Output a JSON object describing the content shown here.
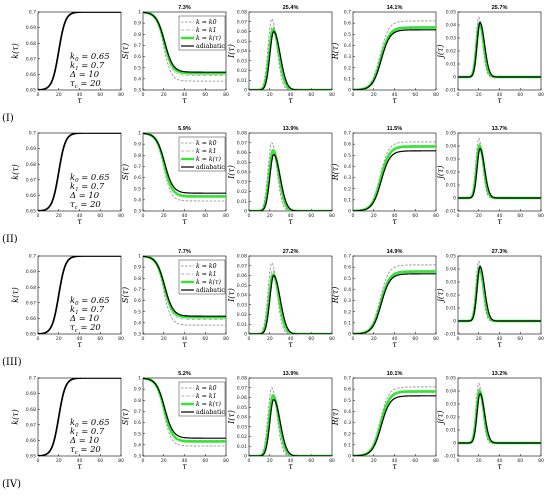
{
  "figure": {
    "row_labels": [
      "(I)",
      "(II)",
      "(III)",
      "(IV)"
    ],
    "params": [
      "k0 = 0.65",
      "k1 = 0.7",
      "Δ = 10",
      "τc = 20"
    ],
    "legend": [
      "k = k0",
      "k = k1",
      "k = k(τ)",
      "adiabatic"
    ],
    "colors": {
      "k0": "#888888",
      "k1": "#9a9a9a",
      "ktau": "#33e633",
      "adiabatic": "#000000"
    }
  },
  "chart_data": [
    {
      "row": "(I)",
      "panel": "k",
      "type": "line",
      "title": "",
      "xlabel": "τ",
      "ylabel": "k(τ)",
      "xlim": [
        0,
        80
      ],
      "ylim": [
        0.65,
        0.7
      ],
      "xticks": [
        "0",
        "20",
        "40",
        "60",
        "80"
      ],
      "yticks": [
        "0.65",
        "0.66",
        "0.67",
        "0.68",
        "0.69",
        "0.7"
      ],
      "series": [
        {
          "name": "",
          "values_x": [
            0,
            10,
            16,
            20,
            24,
            30,
            40,
            80
          ],
          "values_y": [
            0.65,
            0.651,
            0.658,
            0.675,
            0.692,
            0.699,
            0.7,
            0.7
          ]
        }
      ]
    },
    {
      "row": "(I)",
      "panel": "S",
      "type": "line",
      "title": "7.3%",
      "xlabel": "τ",
      "ylabel": "S(τ)",
      "xlim": [
        0,
        80
      ],
      "ylim": [
        0.3,
        1
      ],
      "xticks": [
        "0",
        "20",
        "40",
        "60",
        "80"
      ],
      "yticks": [
        "0.3",
        "0.4",
        "0.5",
        "0.6",
        "0.7",
        "0.8",
        "0.9",
        "1"
      ],
      "series": [
        {
          "name": "k = k0",
          "final": 0.38
        },
        {
          "name": "k = k1",
          "final": 0.43
        },
        {
          "name": "k = k(τ)",
          "final": 0.45
        },
        {
          "name": "adiabatic",
          "final": 0.46
        }
      ]
    },
    {
      "row": "(I)",
      "panel": "I",
      "type": "line",
      "title": "25.4%",
      "xlabel": "τ",
      "ylabel": "I(τ)",
      "xlim": [
        0,
        80
      ],
      "ylim": [
        0,
        0.08
      ],
      "xticks": [
        "0",
        "20",
        "40",
        "60",
        "80"
      ],
      "yticks": [
        "0",
        "0.01",
        "0.02",
        "0.03",
        "0.04",
        "0.05",
        "0.06",
        "0.07",
        "0.08"
      ],
      "series": [
        {
          "name": "k = k0",
          "peak": 0.073
        },
        {
          "name": "k = k1",
          "peak": 0.066
        },
        {
          "name": "k = k(τ)",
          "peak": 0.062
        },
        {
          "name": "adiabatic",
          "peak": 0.06
        }
      ]
    },
    {
      "row": "(I)",
      "panel": "R",
      "type": "line",
      "title": "14.1%",
      "xlabel": "τ",
      "ylabel": "R(τ)",
      "xlim": [
        0,
        80
      ],
      "ylim": [
        0,
        0.7
      ],
      "xticks": [
        "0",
        "20",
        "40",
        "60",
        "80"
      ],
      "yticks": [
        "0",
        "0.1",
        "0.2",
        "0.3",
        "0.4",
        "0.5",
        "0.6",
        "0.7"
      ],
      "series": [
        {
          "name": "k = k0",
          "final": 0.62
        },
        {
          "name": "k = k1",
          "final": 0.57
        },
        {
          "name": "k = k(τ)",
          "final": 0.56
        },
        {
          "name": "adiabatic",
          "final": 0.54
        }
      ]
    },
    {
      "row": "(I)",
      "panel": "j",
      "type": "line",
      "title": "25.7%",
      "xlabel": "τ",
      "ylabel": "j(τ)",
      "xlim": [
        0,
        80
      ],
      "ylim": [
        -0.01,
        0.05
      ],
      "xticks": [
        "0",
        "20",
        "40",
        "60",
        "80"
      ],
      "yticks": [
        "-0.01",
        "0",
        "0.01",
        "0.02",
        "0.03",
        "0.04",
        "0.05"
      ],
      "series": [
        {
          "name": "k = k0",
          "peak": 0.046
        },
        {
          "name": "k = k1",
          "peak": 0.043
        },
        {
          "name": "k = k(τ)",
          "peak": 0.041
        },
        {
          "name": "adiabatic",
          "peak": 0.042
        }
      ]
    },
    {
      "row": "(II)",
      "panel": "k",
      "type": "line",
      "title": "",
      "xlabel": "τ",
      "ylabel": "k(τ)",
      "xlim": [
        0,
        80
      ],
      "ylim": [
        0.65,
        0.7
      ],
      "xticks": [
        "0",
        "20",
        "40",
        "60",
        "80"
      ],
      "yticks": [
        "0.65",
        "0.66",
        "0.67",
        "0.68",
        "0.69",
        "0.7"
      ],
      "series": [
        {
          "name": "",
          "values_x": [
            0,
            10,
            16,
            20,
            24,
            30,
            40,
            80
          ],
          "values_y": [
            0.65,
            0.651,
            0.658,
            0.675,
            0.692,
            0.699,
            0.7,
            0.7
          ]
        }
      ]
    },
    {
      "row": "(II)",
      "panel": "S",
      "type": "line",
      "title": "5.9%",
      "xlabel": "τ",
      "ylabel": "S(τ)",
      "xlim": [
        0,
        80
      ],
      "ylim": [
        0.3,
        1
      ],
      "xticks": [
        "0",
        "20",
        "40",
        "60",
        "80"
      ],
      "yticks": [
        "0.3",
        "0.4",
        "0.5",
        "0.6",
        "0.7",
        "0.8",
        "0.9",
        "1"
      ],
      "series": [
        {
          "name": "k = k0",
          "final": 0.39
        },
        {
          "name": "k = k1",
          "final": 0.44
        },
        {
          "name": "k = k(τ)",
          "final": 0.43
        },
        {
          "name": "adiabatic",
          "final": 0.46
        }
      ]
    },
    {
      "row": "(II)",
      "panel": "I",
      "type": "line",
      "title": "13.9%",
      "xlabel": "τ",
      "ylabel": "I(τ)",
      "xlim": [
        0,
        80
      ],
      "ylim": [
        0,
        0.08
      ],
      "xticks": [
        "0",
        "20",
        "40",
        "60",
        "80"
      ],
      "yticks": [
        "0",
        "0.01",
        "0.02",
        "0.03",
        "0.04",
        "0.05",
        "0.06",
        "0.07",
        "0.08"
      ],
      "series": [
        {
          "name": "k = k0",
          "peak": 0.07
        },
        {
          "name": "k = k1",
          "peak": 0.063
        },
        {
          "name": "k = k(τ)",
          "peak": 0.062
        },
        {
          "name": "adiabatic",
          "peak": 0.058
        }
      ]
    },
    {
      "row": "(II)",
      "panel": "R",
      "type": "line",
      "title": "11.5%",
      "xlabel": "τ",
      "ylabel": "R(τ)",
      "xlim": [
        0,
        80
      ],
      "ylim": [
        0,
        0.7
      ],
      "xticks": [
        "0",
        "20",
        "40",
        "60",
        "80"
      ],
      "yticks": [
        "0",
        "0.1",
        "0.2",
        "0.3",
        "0.4",
        "0.5",
        "0.6",
        "0.7"
      ],
      "series": [
        {
          "name": "k = k0",
          "final": 0.62
        },
        {
          "name": "k = k1",
          "final": 0.57
        },
        {
          "name": "k = k(τ)",
          "final": 0.58
        },
        {
          "name": "adiabatic",
          "final": 0.54
        }
      ]
    },
    {
      "row": "(II)",
      "panel": "j",
      "type": "line",
      "title": "13.7%",
      "xlabel": "τ",
      "ylabel": "j(τ)",
      "xlim": [
        0,
        80
      ],
      "ylim": [
        -0.01,
        0.05
      ],
      "xticks": [
        "0",
        "20",
        "40",
        "60",
        "80"
      ],
      "yticks": [
        "-0.01",
        "0",
        "0.01",
        "0.02",
        "0.03",
        "0.04",
        "0.05"
      ],
      "series": [
        {
          "name": "k = k0",
          "peak": 0.046
        },
        {
          "name": "k = k1",
          "peak": 0.042
        },
        {
          "name": "k = k(τ)",
          "peak": 0.04
        },
        {
          "name": "adiabatic",
          "peak": 0.038
        }
      ]
    },
    {
      "row": "(III)",
      "panel": "k",
      "type": "line",
      "title": "",
      "xlabel": "τ",
      "ylabel": "k(τ)",
      "xlim": [
        0,
        80
      ],
      "ylim": [
        0.65,
        0.7
      ],
      "xticks": [
        "0",
        "20",
        "40",
        "60",
        "80"
      ],
      "yticks": [
        "0.65",
        "0.66",
        "0.67",
        "0.68",
        "0.69",
        "0.7"
      ],
      "series": [
        {
          "name": "",
          "values_x": [
            0,
            10,
            16,
            20,
            24,
            30,
            40,
            80
          ],
          "values_y": [
            0.65,
            0.651,
            0.658,
            0.675,
            0.692,
            0.699,
            0.7,
            0.7
          ]
        }
      ]
    },
    {
      "row": "(III)",
      "panel": "S",
      "type": "line",
      "title": "7.7%",
      "xlabel": "τ",
      "ylabel": "S(τ)",
      "xlim": [
        0,
        80
      ],
      "ylim": [
        0.3,
        1
      ],
      "xticks": [
        "0",
        "20",
        "40",
        "60",
        "80"
      ],
      "yticks": [
        "0.3",
        "0.4",
        "0.5",
        "0.6",
        "0.7",
        "0.8",
        "0.9",
        "1"
      ],
      "series": [
        {
          "name": "k = k0",
          "final": 0.38
        },
        {
          "name": "k = k1",
          "final": 0.43
        },
        {
          "name": "k = k(τ)",
          "final": 0.45
        },
        {
          "name": "adiabatic",
          "final": 0.46
        }
      ]
    },
    {
      "row": "(III)",
      "panel": "I",
      "type": "line",
      "title": "27.2%",
      "xlabel": "τ",
      "ylabel": "I(τ)",
      "xlim": [
        0,
        80
      ],
      "ylim": [
        0,
        0.08
      ],
      "xticks": [
        "0",
        "20",
        "40",
        "60",
        "80"
      ],
      "yticks": [
        "0",
        "0.01",
        "0.02",
        "0.03",
        "0.04",
        "0.05",
        "0.06",
        "0.07",
        "0.08"
      ],
      "series": [
        {
          "name": "k = k0",
          "peak": 0.073
        },
        {
          "name": "k = k1",
          "peak": 0.066
        },
        {
          "name": "k = k(τ)",
          "peak": 0.061
        },
        {
          "name": "adiabatic",
          "peak": 0.06
        }
      ]
    },
    {
      "row": "(III)",
      "panel": "R",
      "type": "line",
      "title": "14.9%",
      "xlabel": "τ",
      "ylabel": "R(τ)",
      "xlim": [
        0,
        80
      ],
      "ylim": [
        0,
        0.7
      ],
      "xticks": [
        "0",
        "20",
        "40",
        "60",
        "80"
      ],
      "yticks": [
        "0",
        "0.1",
        "0.2",
        "0.3",
        "0.4",
        "0.5",
        "0.6",
        "0.7"
      ],
      "series": [
        {
          "name": "k = k0",
          "final": 0.62
        },
        {
          "name": "k = k1",
          "final": 0.57
        },
        {
          "name": "k = k(τ)",
          "final": 0.56
        },
        {
          "name": "adiabatic",
          "final": 0.54
        }
      ]
    },
    {
      "row": "(III)",
      "panel": "j",
      "type": "line",
      "title": "27.3%",
      "xlabel": "τ",
      "ylabel": "j(τ)",
      "xlim": [
        0,
        80
      ],
      "ylim": [
        -0.01,
        0.05
      ],
      "xticks": [
        "0",
        "20",
        "40",
        "60",
        "80"
      ],
      "yticks": [
        "-0.01",
        "0",
        "0.01",
        "0.02",
        "0.03",
        "0.04",
        "0.05"
      ],
      "series": [
        {
          "name": "k = k0",
          "peak": 0.046
        },
        {
          "name": "k = k1",
          "peak": 0.043
        },
        {
          "name": "k = k(τ)",
          "peak": 0.04
        },
        {
          "name": "adiabatic",
          "peak": 0.042
        }
      ]
    },
    {
      "row": "(IV)",
      "panel": "k",
      "type": "line",
      "title": "",
      "xlabel": "τ",
      "ylabel": "k(τ)",
      "xlim": [
        0,
        80
      ],
      "ylim": [
        0.65,
        0.7
      ],
      "xticks": [
        "0",
        "20",
        "40",
        "60",
        "80"
      ],
      "yticks": [
        "0.65",
        "0.66",
        "0.67",
        "0.68",
        "0.69",
        "0.7"
      ],
      "series": [
        {
          "name": "",
          "values_x": [
            0,
            10,
            16,
            20,
            24,
            30,
            40,
            80
          ],
          "values_y": [
            0.65,
            0.651,
            0.658,
            0.675,
            0.692,
            0.699,
            0.7,
            0.7
          ]
        }
      ]
    },
    {
      "row": "(IV)",
      "panel": "S",
      "type": "line",
      "title": "5.2%",
      "xlabel": "τ",
      "ylabel": "S(τ)",
      "xlim": [
        0,
        80
      ],
      "ylim": [
        0.3,
        1
      ],
      "xticks": [
        "0",
        "20",
        "40",
        "60",
        "80"
      ],
      "yticks": [
        "0.3",
        "0.4",
        "0.5",
        "0.6",
        "0.7",
        "0.8",
        "0.9",
        "1"
      ],
      "series": [
        {
          "name": "k = k0",
          "final": 0.39
        },
        {
          "name": "k = k1",
          "final": 0.44
        },
        {
          "name": "k = k(τ)",
          "final": 0.43
        },
        {
          "name": "adiabatic",
          "final": 0.46
        }
      ]
    },
    {
      "row": "(IV)",
      "panel": "I",
      "type": "line",
      "title": "13.9%",
      "xlabel": "τ",
      "ylabel": "I(τ)",
      "xlim": [
        0,
        80
      ],
      "ylim": [
        0,
        0.08
      ],
      "xticks": [
        "0",
        "20",
        "40",
        "60",
        "80"
      ],
      "yticks": [
        "0",
        "0.01",
        "0.02",
        "0.03",
        "0.04",
        "0.05",
        "0.06",
        "0.07",
        "0.08"
      ],
      "series": [
        {
          "name": "k = k0",
          "peak": 0.07
        },
        {
          "name": "k = k1",
          "peak": 0.063
        },
        {
          "name": "k = k(τ)",
          "peak": 0.062
        },
        {
          "name": "adiabatic",
          "peak": 0.058
        }
      ]
    },
    {
      "row": "(IV)",
      "panel": "R",
      "type": "line",
      "title": "10.1%",
      "xlabel": "τ",
      "ylabel": "R(τ)",
      "xlim": [
        0,
        80
      ],
      "ylim": [
        0,
        0.7
      ],
      "xticks": [
        "0",
        "20",
        "40",
        "60",
        "80"
      ],
      "yticks": [
        "0",
        "0.1",
        "0.2",
        "0.3",
        "0.4",
        "0.5",
        "0.6",
        "0.7"
      ],
      "series": [
        {
          "name": "k = k0",
          "final": 0.62
        },
        {
          "name": "k = k1",
          "final": 0.57
        },
        {
          "name": "k = k(τ)",
          "final": 0.58
        },
        {
          "name": "adiabatic",
          "final": 0.54
        }
      ]
    },
    {
      "row": "(IV)",
      "panel": "j",
      "type": "line",
      "title": "13.2%",
      "xlabel": "τ",
      "ylabel": "j(τ)",
      "xlim": [
        0,
        80
      ],
      "ylim": [
        -0.01,
        0.05
      ],
      "xticks": [
        "0",
        "20",
        "40",
        "60",
        "80"
      ],
      "yticks": [
        "-0.01",
        "0",
        "0.01",
        "0.02",
        "0.03",
        "0.04",
        "0.05"
      ],
      "series": [
        {
          "name": "k = k0",
          "peak": 0.046
        },
        {
          "name": "k = k1",
          "peak": 0.042
        },
        {
          "name": "k = k(τ)",
          "peak": 0.04
        },
        {
          "name": "adiabatic",
          "peak": 0.038
        }
      ]
    }
  ]
}
